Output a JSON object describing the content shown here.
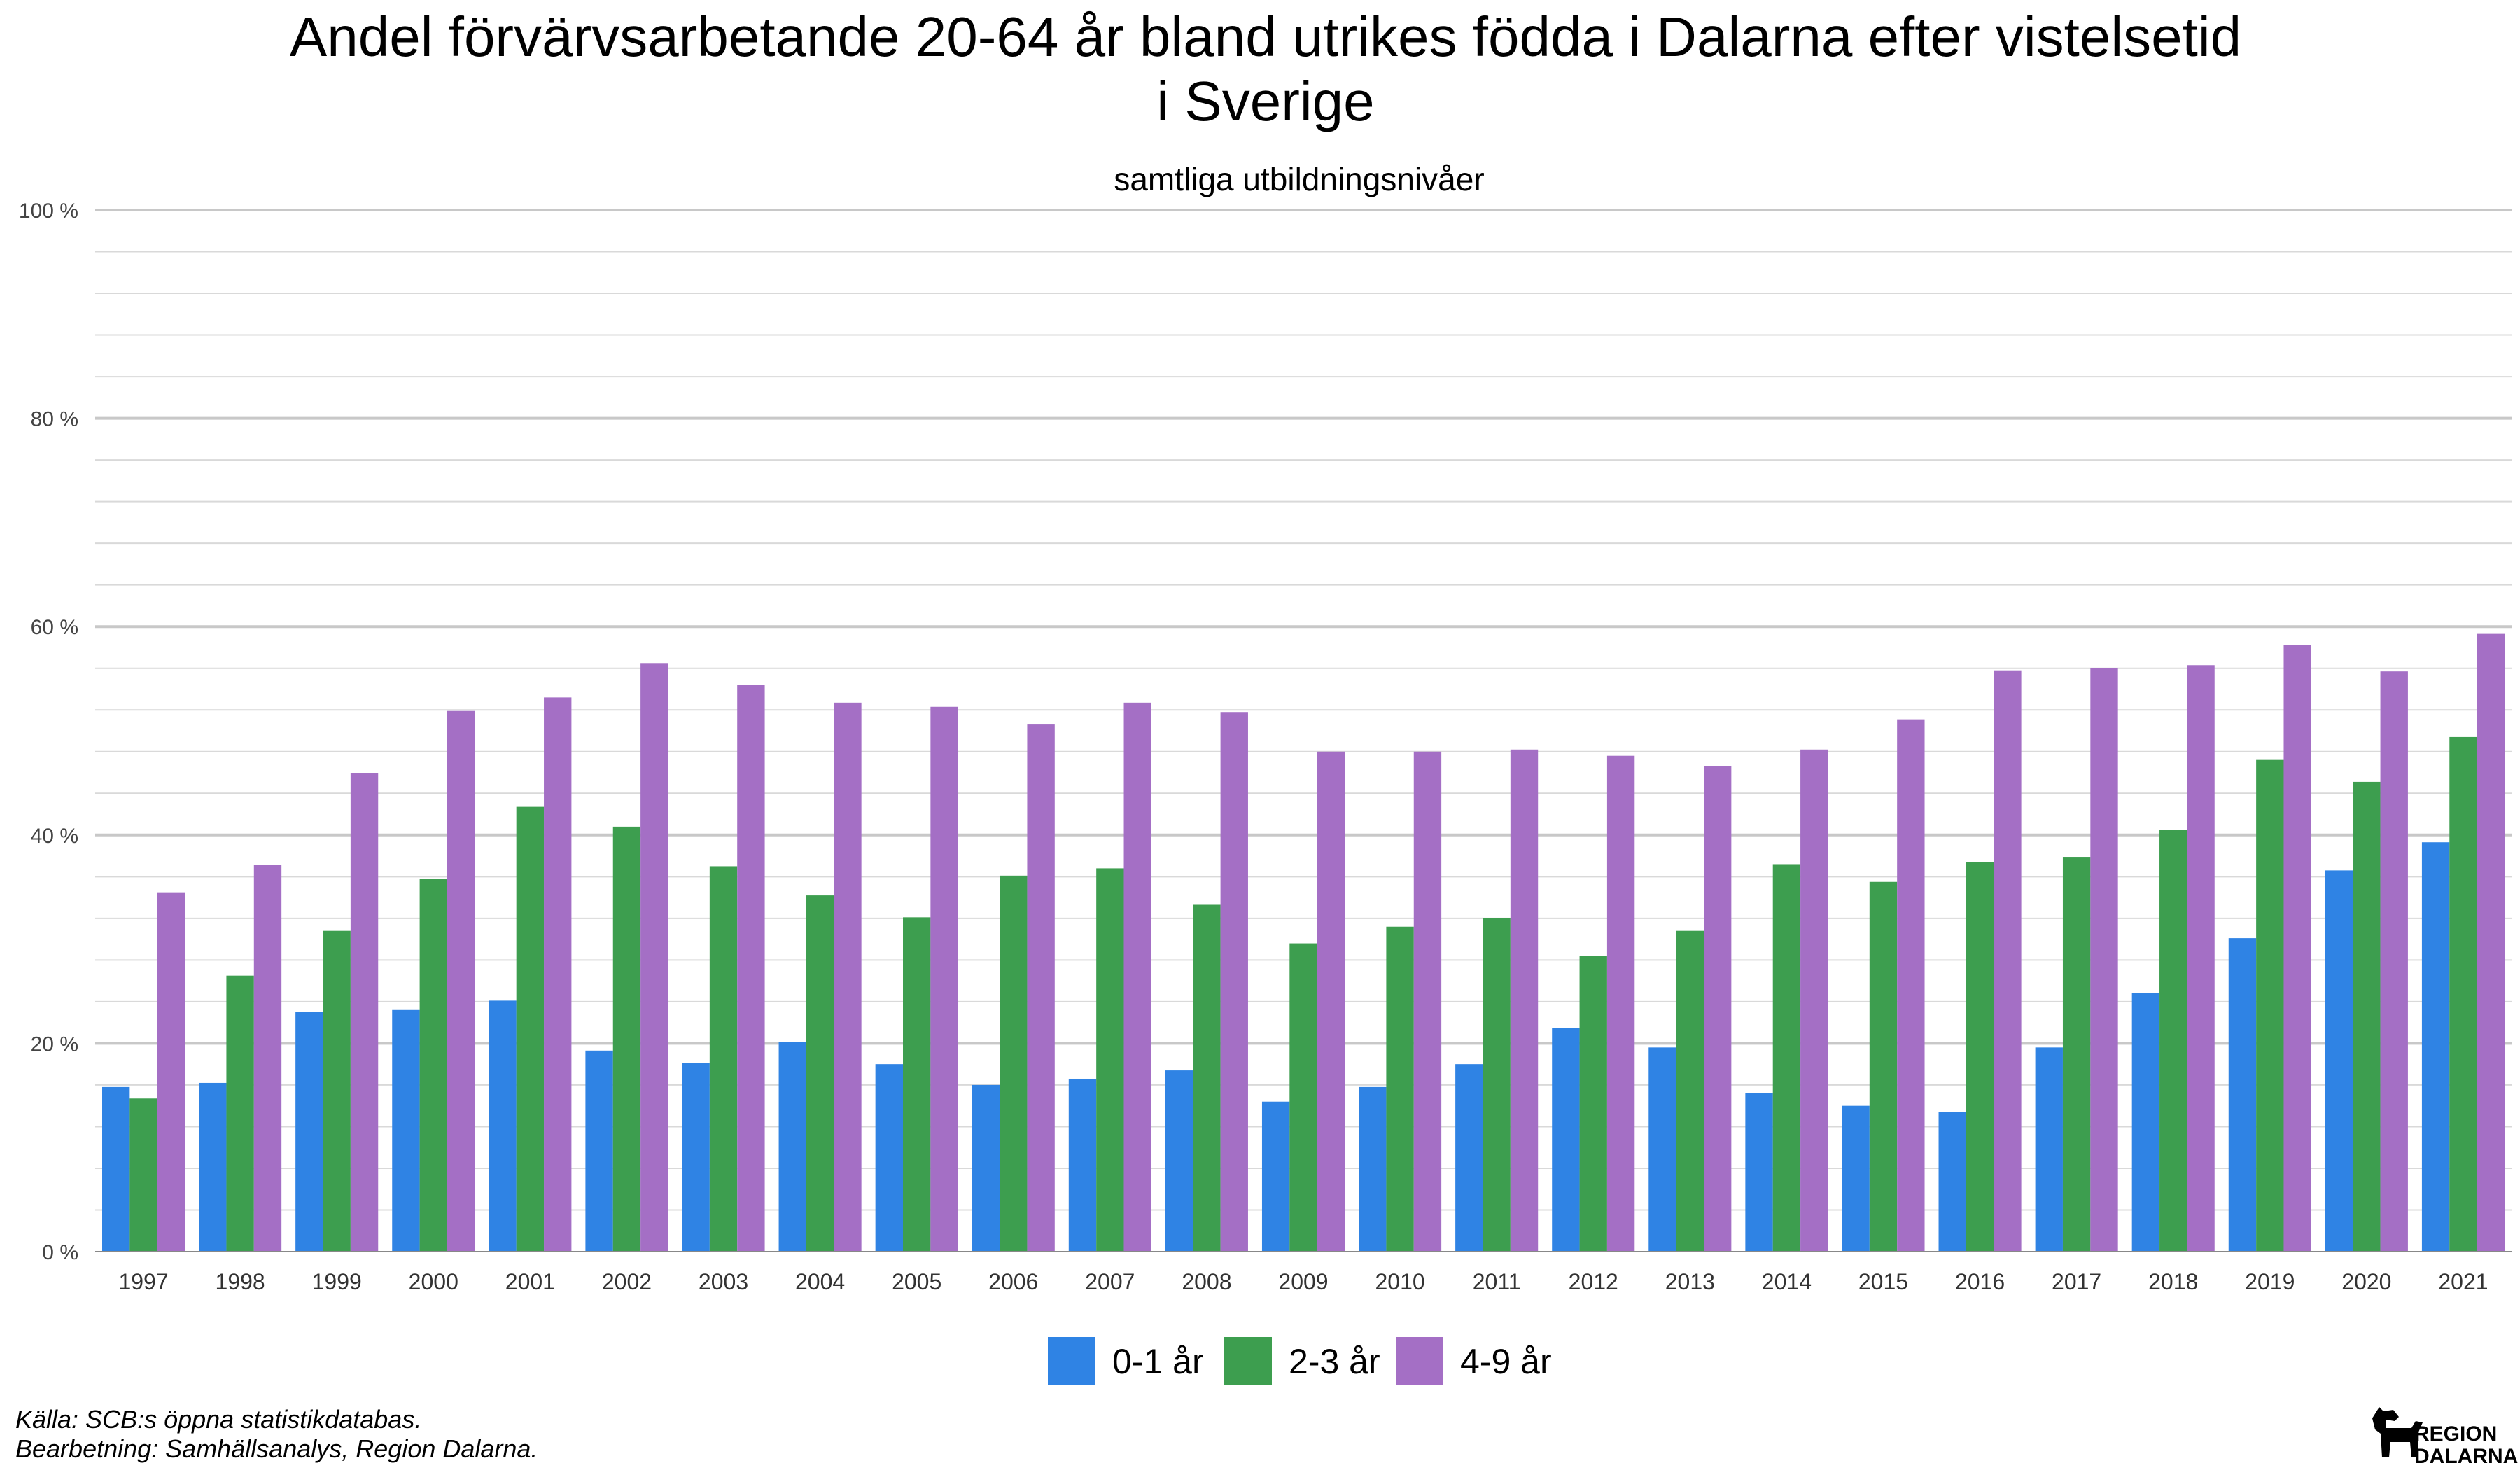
{
  "chart_data": {
    "type": "bar",
    "title_lines": [
      "Andel förvärvsarbetande 20-64 år bland utrikes födda i Dalarna efter vistelsetid",
      "i Sverige"
    ],
    "subtitle": "samtliga utbildningsnivåer",
    "categories": [
      "1997",
      "1998",
      "1999",
      "2000",
      "2001",
      "2002",
      "2003",
      "2004",
      "2005",
      "2006",
      "2007",
      "2008",
      "2009",
      "2010",
      "2011",
      "2012",
      "2013",
      "2014",
      "2015",
      "2016",
      "2017",
      "2018",
      "2019",
      "2020",
      "2021"
    ],
    "series": [
      {
        "name": "0-1 år",
        "color": "#2f83e4",
        "values": [
          15.8,
          16.2,
          23.0,
          23.2,
          24.1,
          19.3,
          18.1,
          20.1,
          18.0,
          16.0,
          16.6,
          17.4,
          14.4,
          15.8,
          18.0,
          21.5,
          19.6,
          15.2,
          14.0,
          13.4,
          19.6,
          24.8,
          30.1,
          36.6,
          39.3
        ]
      },
      {
        "name": "2-3 år",
        "color": "#3d9e4f",
        "values": [
          14.7,
          26.5,
          30.8,
          35.8,
          42.7,
          40.8,
          37.0,
          34.2,
          32.1,
          36.1,
          36.8,
          33.3,
          29.6,
          31.2,
          32.0,
          28.4,
          30.8,
          37.2,
          35.5,
          37.4,
          37.9,
          40.5,
          47.2,
          45.1,
          49.4
        ]
      },
      {
        "name": "4-9 år",
        "color": "#a46fc5",
        "values": [
          34.5,
          37.1,
          45.9,
          51.9,
          53.2,
          56.5,
          54.4,
          52.7,
          52.3,
          50.6,
          52.7,
          51.8,
          48.0,
          48.0,
          48.2,
          47.6,
          46.6,
          48.2,
          51.1,
          55.8,
          56.0,
          56.3,
          58.2,
          55.7,
          59.3
        ]
      }
    ],
    "ylim": [
      0,
      100
    ],
    "yticks": [
      0,
      20,
      40,
      60,
      80,
      100
    ],
    "ytick_labels": [
      "0 %",
      "20 %",
      "40 %",
      "60 %",
      "80 %",
      "100 %"
    ],
    "grid": true,
    "legend_position": "bottom-center"
  },
  "footer": {
    "source_line": "Källa: SCB:s öppna statistikdatabas.",
    "processing_line": "Bearbetning: Samhällsanalys, Region Dalarna."
  },
  "logo": {
    "line1": "REGION",
    "line2": "DALARNA",
    "icon": "dala-horse-icon"
  }
}
